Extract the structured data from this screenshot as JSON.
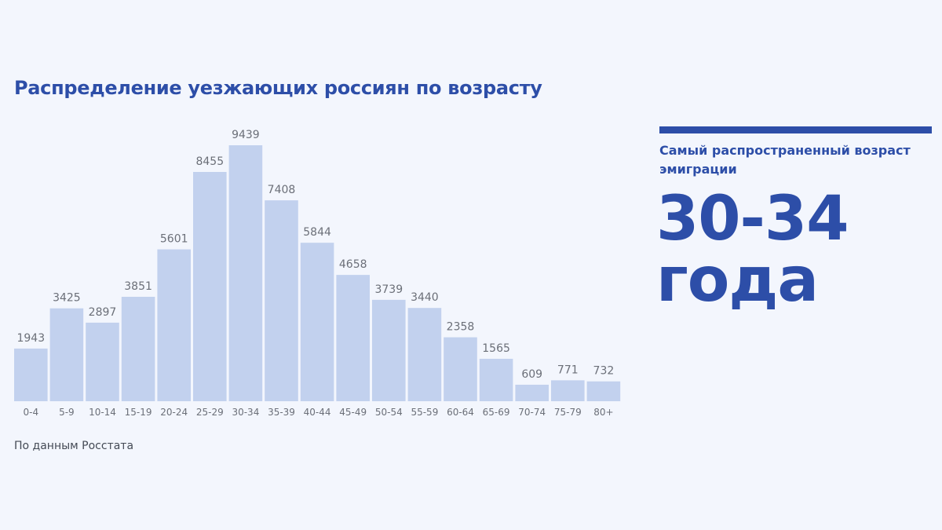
{
  "title": "Распределение уезжающих россиян по возрасту",
  "source": "По данным Росстата",
  "side": {
    "caption": "Самый распространенный возраст эмиграции",
    "big_line1": "30-34",
    "big_line2": "года"
  },
  "colors": {
    "bar": "#c2d1ee",
    "accent": "#2d4ea8",
    "label": "#6b6f78"
  },
  "chart_data": {
    "type": "bar",
    "categories": [
      "0-4",
      "5-9",
      "10-14",
      "15-19",
      "20-24",
      "25-29",
      "30-34",
      "35-39",
      "40-44",
      "45-49",
      "50-54",
      "55-59",
      "60-64",
      "65-69",
      "70-74",
      "75-79",
      "80+"
    ],
    "values": [
      1943,
      3425,
      2897,
      3851,
      5601,
      8455,
      9439,
      7408,
      5844,
      4658,
      3739,
      3440,
      2358,
      1565,
      609,
      771,
      732
    ],
    "title": "Распределение уезжающих россиян по возрасту",
    "xlabel": "",
    "ylabel": "",
    "ylim": [
      0,
      9439
    ],
    "grid": false,
    "legend": "none"
  }
}
